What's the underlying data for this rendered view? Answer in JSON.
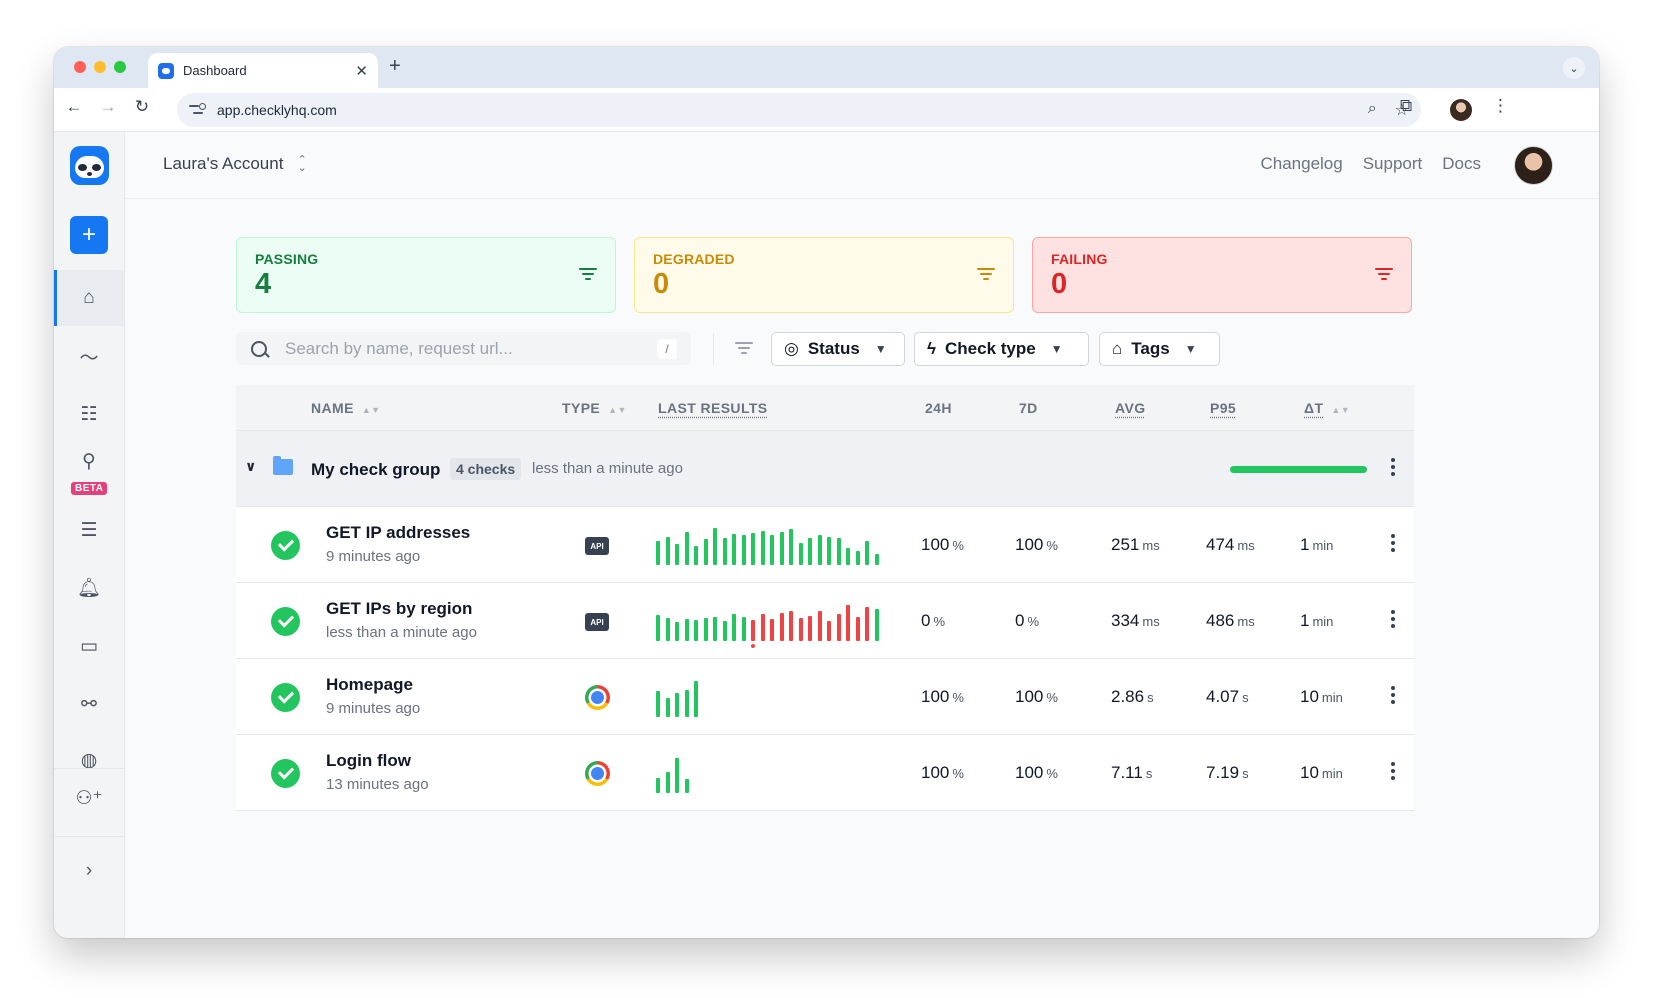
{
  "browser": {
    "tab_title": "Dashboard",
    "tab_close": "✕",
    "new_tab": "+",
    "url": "app.checklyhq.com",
    "traffic_lights": [
      "#ff5f57",
      "#febc2e",
      "#28c840"
    ]
  },
  "header": {
    "account": "Laura's Account",
    "links": [
      "Changelog",
      "Support",
      "Docs"
    ]
  },
  "sidebar": {
    "beta_label": "BETA"
  },
  "summary": [
    {
      "label": "PASSING",
      "count": "4",
      "bg": "#ecfdf5",
      "border": "#bbf7d0",
      "color": "#15803d"
    },
    {
      "label": "DEGRADED",
      "count": "0",
      "bg": "#fffbeb",
      "border": "#fde68a",
      "color": "#ca8a04"
    },
    {
      "label": "FAILING",
      "count": "0",
      "bg": "#fee2e2",
      "border": "#fca5a5",
      "color": "#dc2626"
    }
  ],
  "filters": {
    "search_placeholder": "Search by name, request url...",
    "shortcut": "/",
    "status": "Status",
    "check_type": "Check type",
    "tags": "Tags"
  },
  "table": {
    "columns": [
      "NAME",
      "TYPE",
      "LAST RESULTS",
      "24H",
      "7D",
      "AVG",
      "P95",
      "ΔT"
    ],
    "group": {
      "name": "My check group",
      "badge": "4 checks",
      "time": "less than a minute ago",
      "health": 1.0
    },
    "rows": [
      {
        "name": "GET IP addresses",
        "time": "9 minutes ago",
        "type": "api",
        "type_label": "API",
        "results": [
          {
            "h": 0.62,
            "f": 0
          },
          {
            "h": 0.75,
            "f": 0
          },
          {
            "h": 0.55,
            "f": 0
          },
          {
            "h": 0.88,
            "f": 0
          },
          {
            "h": 0.5,
            "f": 0
          },
          {
            "h": 0.68,
            "f": 0
          },
          {
            "h": 0.97,
            "f": 0
          },
          {
            "h": 0.72,
            "f": 0
          },
          {
            "h": 0.82,
            "f": 0
          },
          {
            "h": 0.78,
            "f": 0
          },
          {
            "h": 0.84,
            "f": 0
          },
          {
            "h": 0.9,
            "f": 0
          },
          {
            "h": 0.8,
            "f": 0
          },
          {
            "h": 0.86,
            "f": 0
          },
          {
            "h": 0.94,
            "f": 0
          },
          {
            "h": 0.58,
            "f": 0
          },
          {
            "h": 0.72,
            "f": 0
          },
          {
            "h": 0.8,
            "f": 0
          },
          {
            "h": 0.74,
            "f": 0
          },
          {
            "h": 0.7,
            "f": 0
          },
          {
            "h": 0.45,
            "f": 0
          },
          {
            "h": 0.36,
            "f": 0
          },
          {
            "h": 0.62,
            "f": 0
          },
          {
            "h": 0.3,
            "f": 0
          }
        ],
        "d24h": "100",
        "d24h_u": "%",
        "d7d": "100",
        "d7d_u": "%",
        "avg": "251",
        "avg_u": "ms",
        "p95": "474",
        "p95_u": "ms",
        "dt": "1",
        "dt_u": "min"
      },
      {
        "name": "GET IPs by region",
        "time": "less than a minute ago",
        "type": "api",
        "type_label": "API",
        "results": [
          {
            "h": 0.68,
            "f": 0
          },
          {
            "h": 0.6,
            "f": 0
          },
          {
            "h": 0.5,
            "f": 0
          },
          {
            "h": 0.58,
            "f": 0
          },
          {
            "h": 0.55,
            "f": 0
          },
          {
            "h": 0.6,
            "f": 0
          },
          {
            "h": 0.64,
            "f": 0
          },
          {
            "h": 0.52,
            "f": 0
          },
          {
            "h": 0.72,
            "f": 0
          },
          {
            "h": 0.62,
            "f": 0
          },
          {
            "h": 0.54,
            "f": 1,
            "dot": 1
          },
          {
            "h": 0.7,
            "f": 1
          },
          {
            "h": 0.58,
            "f": 1
          },
          {
            "h": 0.74,
            "f": 1
          },
          {
            "h": 0.8,
            "f": 1
          },
          {
            "h": 0.6,
            "f": 1
          },
          {
            "h": 0.66,
            "f": 1
          },
          {
            "h": 0.78,
            "f": 1
          },
          {
            "h": 0.52,
            "f": 1
          },
          {
            "h": 0.7,
            "f": 1
          },
          {
            "h": 0.95,
            "f": 1
          },
          {
            "h": 0.62,
            "f": 1
          },
          {
            "h": 0.9,
            "f": 1
          },
          {
            "h": 0.85,
            "f": 0
          }
        ],
        "d24h": "0",
        "d24h_u": "%",
        "d7d": "0",
        "d7d_u": "%",
        "avg": "334",
        "avg_u": "ms",
        "p95": "486",
        "p95_u": "ms",
        "dt": "1",
        "dt_u": "min"
      },
      {
        "name": "Homepage",
        "time": "9 minutes ago",
        "type": "browser",
        "type_label": "",
        "results": [
          {
            "h": 0.68,
            "f": 0
          },
          {
            "h": 0.5,
            "f": 0
          },
          {
            "h": 0.62,
            "f": 0
          },
          {
            "h": 0.72,
            "f": 0
          },
          {
            "h": 0.95,
            "f": 0
          }
        ],
        "d24h": "100",
        "d24h_u": "%",
        "d7d": "100",
        "d7d_u": "%",
        "avg": "2.86",
        "avg_u": "s",
        "p95": "4.07",
        "p95_u": "s",
        "dt": "10",
        "dt_u": "min"
      },
      {
        "name": "Login flow",
        "time": "13 minutes ago",
        "type": "browser",
        "type_label": "",
        "results": [
          {
            "h": 0.4,
            "f": 0
          },
          {
            "h": 0.55,
            "f": 0
          },
          {
            "h": 0.92,
            "f": 0
          },
          {
            "h": 0.38,
            "f": 0
          }
        ],
        "d24h": "100",
        "d24h_u": "%",
        "d7d": "100",
        "d7d_u": "%",
        "avg": "7.11",
        "avg_u": "s",
        "p95": "7.19",
        "p95_u": "s",
        "dt": "10",
        "dt_u": "min"
      }
    ]
  },
  "colors": {
    "accent": "#1677f3",
    "pass": "#22c55e",
    "fail": "#ef4444"
  }
}
